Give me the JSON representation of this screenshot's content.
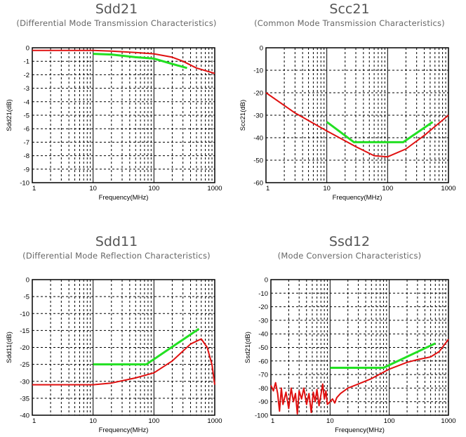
{
  "chart_data": [
    {
      "type": "line",
      "title": "Sdd21",
      "subtitle": "(Differential Mode Transmission Characteristics)",
      "xlabel": "Frequency(MHz)",
      "ylabel": "Sdd21(dB)",
      "xscale": "log",
      "xlim": [
        1,
        1000
      ],
      "ylim": [
        -10,
        0
      ],
      "xticks": [
        "1",
        "10",
        "100",
        "1000"
      ],
      "yticks": [
        0,
        -1,
        -2,
        -3,
        -4,
        -5,
        -6,
        -7,
        -8,
        -9,
        -10
      ],
      "grid": true,
      "series": [
        {
          "color": "#e01010",
          "points": [
            [
              1,
              -0.2
            ],
            [
              10,
              -0.2
            ],
            [
              20,
              -0.25
            ],
            [
              50,
              -0.35
            ],
            [
              100,
              -0.45
            ],
            [
              200,
              -0.7
            ],
            [
              300,
              -1.0
            ],
            [
              500,
              -1.5
            ],
            [
              1000,
              -1.9
            ]
          ]
        },
        {
          "color": "#22e022",
          "points": [
            [
              10,
              -0.45
            ],
            [
              20,
              -0.5
            ],
            [
              50,
              -0.7
            ],
            [
              100,
              -0.8
            ],
            [
              200,
              -1.2
            ],
            [
              350,
              -1.5
            ]
          ]
        }
      ]
    },
    {
      "type": "line",
      "title": "Scc21",
      "subtitle": "(Common Mode Transmission Characteristics)",
      "xlabel": "Frequency(MHz)",
      "ylabel": "Scc21(dB)",
      "xscale": "log",
      "xlim": [
        1,
        1000
      ],
      "ylim": [
        -60,
        0
      ],
      "xticks": [
        "1",
        "10",
        "100",
        "1000"
      ],
      "yticks": [
        0,
        -10,
        -20,
        -30,
        -40,
        -50,
        -60
      ],
      "grid": true,
      "series": [
        {
          "color": "#e01010",
          "points": [
            [
              1,
              -20
            ],
            [
              3,
              -29
            ],
            [
              10,
              -37
            ],
            [
              30,
              -44
            ],
            [
              60,
              -48
            ],
            [
              100,
              -48.5
            ],
            [
              200,
              -45
            ],
            [
              400,
              -39
            ],
            [
              1000,
              -30
            ]
          ]
        },
        {
          "color": "#22e022",
          "points": [
            [
              10,
              -33
            ],
            [
              28,
              -42
            ],
            [
              180,
              -42
            ],
            [
              550,
              -33
            ]
          ]
        }
      ]
    },
    {
      "type": "line",
      "title": "Sdd11",
      "subtitle": "(Differential Mode Reflection Characteristics)",
      "xlabel": "Frequency(MHz)",
      "ylabel": "Sdd11(dB)",
      "xscale": "log",
      "xlim": [
        1,
        1000
      ],
      "ylim": [
        -40,
        0
      ],
      "xticks": [
        "1",
        "10",
        "100",
        "1000"
      ],
      "yticks": [
        0,
        -5,
        -10,
        -15,
        -20,
        -25,
        -30,
        -35,
        -40
      ],
      "grid": true,
      "series": [
        {
          "color": "#e01010",
          "points": [
            [
              1,
              -31
            ],
            [
              10,
              -31
            ],
            [
              20,
              -30.5
            ],
            [
              50,
              -29
            ],
            [
              100,
              -27.5
            ],
            [
              200,
              -24
            ],
            [
              400,
              -19
            ],
            [
              600,
              -17.5
            ],
            [
              750,
              -20
            ],
            [
              900,
              -25
            ],
            [
              1000,
              -31
            ]
          ]
        },
        {
          "color": "#22e022",
          "points": [
            [
              10,
              -25
            ],
            [
              75,
              -25
            ],
            [
              550,
              -14.5
            ]
          ]
        }
      ]
    },
    {
      "type": "line",
      "title": "Ssd12",
      "subtitle": "(Mode Conversion Characteristics)",
      "xlabel": "Frequency(MHz)",
      "ylabel": "Ssd21(dB)",
      "xscale": "log",
      "xlim": [
        1,
        1000
      ],
      "ylim": [
        -100,
        0
      ],
      "xticks": [
        "1",
        "10",
        "100",
        "1000"
      ],
      "yticks": [
        0,
        -10,
        -20,
        -30,
        -40,
        -50,
        -60,
        -70,
        -80,
        -90,
        -100
      ],
      "grid": true,
      "series": [
        {
          "color": "#e01010",
          "points": [
            [
              1,
              -78
            ],
            [
              1.1,
              -82
            ],
            [
              1.2,
              -76
            ],
            [
              1.3,
              -84
            ],
            [
              1.4,
              -97
            ],
            [
              1.5,
              -80
            ],
            [
              1.6,
              -92
            ],
            [
              1.8,
              -83
            ],
            [
              2,
              -95
            ],
            [
              2.2,
              -80
            ],
            [
              2.4,
              -90
            ],
            [
              2.6,
              -84
            ],
            [
              2.8,
              -99
            ],
            [
              3,
              -82
            ],
            [
              3.3,
              -88
            ],
            [
              3.6,
              -80
            ],
            [
              4,
              -92
            ],
            [
              4.4,
              -84
            ],
            [
              4.8,
              -98
            ],
            [
              5.2,
              -83
            ],
            [
              5.6,
              -90
            ],
            [
              6,
              -81
            ],
            [
              6.5,
              -93
            ],
            [
              7,
              -85
            ],
            [
              7.5,
              -77
            ],
            [
              8,
              -88
            ],
            [
              8.5,
              -82
            ],
            [
              9,
              -92
            ],
            [
              10,
              -90
            ],
            [
              11,
              -88
            ],
            [
              12,
              -91
            ],
            [
              13,
              -87
            ],
            [
              15,
              -84
            ],
            [
              20,
              -80
            ],
            [
              30,
              -77
            ],
            [
              50,
              -73
            ],
            [
              100,
              -66
            ],
            [
              200,
              -61
            ],
            [
              300,
              -59
            ],
            [
              500,
              -57
            ],
            [
              700,
              -53
            ],
            [
              1000,
              -44
            ]
          ]
        },
        {
          "color": "#22e022",
          "points": [
            [
              10,
              -65
            ],
            [
              80,
              -65
            ],
            [
              600,
              -47
            ]
          ]
        }
      ]
    }
  ]
}
